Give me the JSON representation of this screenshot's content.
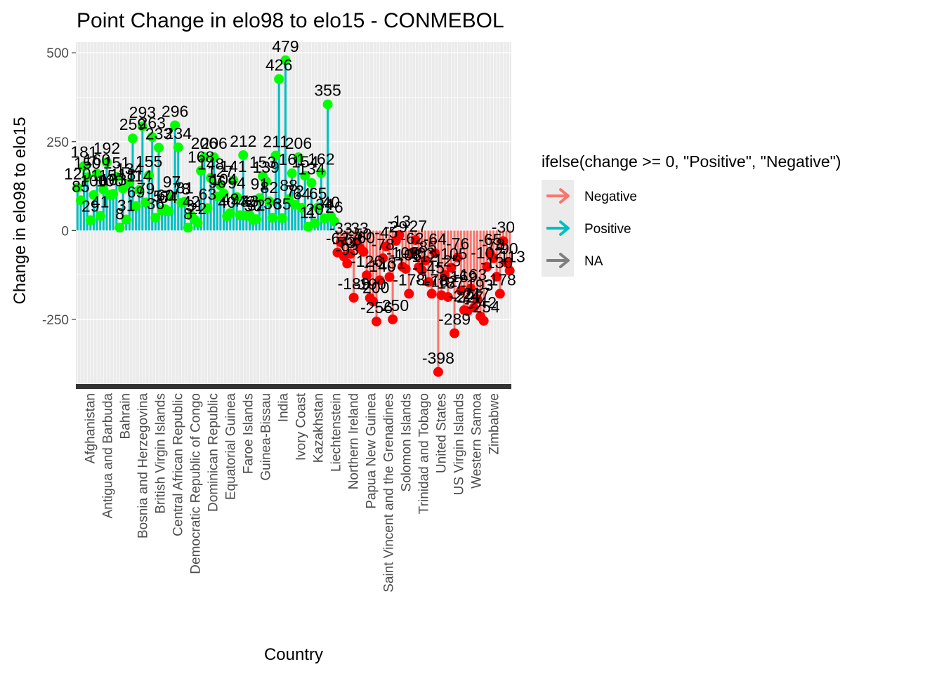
{
  "chart_data": {
    "type": "lollipop",
    "title": "Point Change in elo98 to elo15 - CONMEBOL",
    "xlabel": "Country",
    "ylabel": "Change in elo98 to elo15",
    "ylim": [
      -430,
      530
    ],
    "yticks": [
      -250,
      0,
      250,
      500
    ],
    "grid": true,
    "legend": {
      "title": "ifelse(change >= 0, \"Positive\", \"Negative\")",
      "placement": "right",
      "entries": [
        {
          "name": "Negative",
          "color": "#F8766D"
        },
        {
          "name": "Positive",
          "color": "#00BFC4"
        },
        {
          "name": "NA",
          "color": "#7F7F7F"
        }
      ]
    },
    "colors": {
      "negative_line": "#F8766D",
      "positive_line": "#00BFC4",
      "negative_point": "#FF0000",
      "positive_point": "#00FF00",
      "panel_background": "#EBEBEB",
      "grid": "#FFFFFF"
    },
    "x_tick_labels": [
      "Afghanistan",
      "Antigua and Barbuda",
      "Bahrain",
      "Bosnia and Herzegovina",
      "British Virgin Islands",
      "Central African Republic",
      "Democratic Republic of Congo",
      "Dominican Republic",
      "Equatorial Guinea",
      "Faroe Islands",
      "Guinea-Bissau",
      "India",
      "Ivory Coast",
      "Kazakhstan",
      "Liechtenstein",
      "Northern Ireland",
      "Papua New Guinea",
      "Saint Vincent and the Grenadines",
      "Solomon Islands",
      "Trinidad and Tobago",
      "United States",
      "US Virgin Islands",
      "Western Samoa",
      "Zimbabwe"
    ],
    "values": [
      120,
      85,
      181,
      150,
      29,
      100,
      160,
      41,
      115,
      192,
      100,
      103,
      151,
      8,
      118,
      31,
      134,
      259,
      69,
      114,
      293,
      79,
      155,
      263,
      36,
      233,
      57,
      60,
      54,
      97,
      296,
      234,
      78,
      81,
      8,
      42,
      31,
      22,
      168,
      206,
      63,
      148,
      206,
      96,
      127,
      104,
      40,
      49,
      141,
      94,
      43,
      212,
      42,
      43,
      30,
      32,
      91,
      153,
      139,
      82,
      36,
      211,
      426,
      35,
      479,
      88,
      161,
      72,
      206,
      64,
      154,
      11,
      134,
      20,
      65,
      162,
      34,
      355,
      40,
      26,
      -62,
      -33,
      -73,
      -93,
      -66,
      -189,
      -33,
      -50,
      -60,
      -126,
      -190,
      -200,
      -256,
      -140,
      -78,
      -45,
      -131,
      -250,
      -29,
      -13,
      -102,
      -108,
      -178,
      -62,
      -27,
      -103,
      -112,
      -85,
      -145,
      -178,
      -64,
      -398,
      -182,
      -125,
      -187,
      -105,
      -289,
      -76,
      -169,
      -224,
      -227,
      -163,
      -217,
      -193,
      -242,
      -254,
      -102,
      -65,
      -78,
      -130,
      -178,
      -30,
      -90,
      -113
    ]
  },
  "texts": {
    "NA_label": "NA"
  }
}
